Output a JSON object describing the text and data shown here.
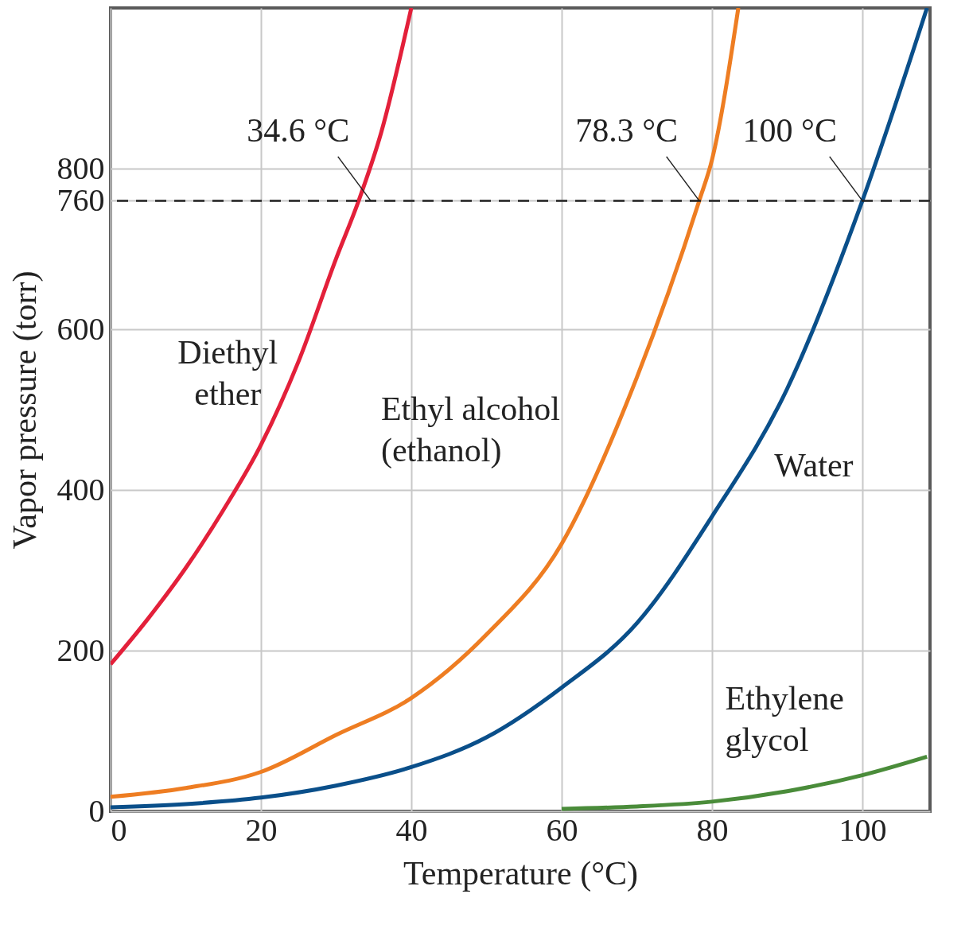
{
  "chart_data": {
    "type": "line",
    "xlabel": "Temperature (°C)",
    "ylabel": "Vapor pressure (torr)",
    "xlim": [
      0,
      109
    ],
    "ylim": [
      0,
      1000
    ],
    "xticks": [
      0,
      20,
      40,
      60,
      80,
      100
    ],
    "yticks": [
      0,
      200,
      400,
      600,
      760,
      800
    ],
    "grid": true,
    "series": [
      {
        "name": "Diethyl\nether",
        "color": "#e3203a",
        "x": [
          0,
          5,
          10,
          15,
          20,
          25,
          30,
          33,
          36,
          40
        ],
        "values": [
          183,
          240,
          303,
          375,
          456,
          560,
          688,
          760,
          845,
          1000
        ]
      },
      {
        "name": "Ethyl alcohol\n(ethanol)",
        "color": "#ee7d22",
        "x": [
          0,
          10,
          20,
          30,
          40,
          50,
          60,
          70,
          78.3,
          80,
          83.5
        ],
        "values": [
          18,
          29,
          49,
          95,
          141,
          220,
          333,
          540,
          760,
          811,
          1000
        ]
      },
      {
        "name": "Water",
        "color": "#0a4f8a",
        "x": [
          0,
          10,
          20,
          30,
          40,
          50,
          60,
          70,
          80,
          90,
          100,
          108.6
        ],
        "values": [
          5,
          9,
          17,
          32,
          55,
          92,
          154,
          234,
          367,
          526,
          760,
          1000
        ]
      },
      {
        "name": "Ethylene\nglycol",
        "color": "#4a8c3a",
        "x": [
          60,
          70,
          80,
          90,
          100,
          108.6
        ],
        "values": [
          3,
          6,
          12,
          25,
          45,
          68
        ]
      }
    ],
    "ref_lines": [
      {
        "axis": "y",
        "value": 760,
        "color": "#222222",
        "line_style": "dashed"
      }
    ],
    "annotations": [
      {
        "text": "34.6 °C",
        "x": 34.6,
        "y": 760
      },
      {
        "text": "78.3 °C",
        "x": 78.3,
        "y": 760
      },
      {
        "text": "100 °C",
        "x": 100,
        "y": 760
      }
    ]
  }
}
